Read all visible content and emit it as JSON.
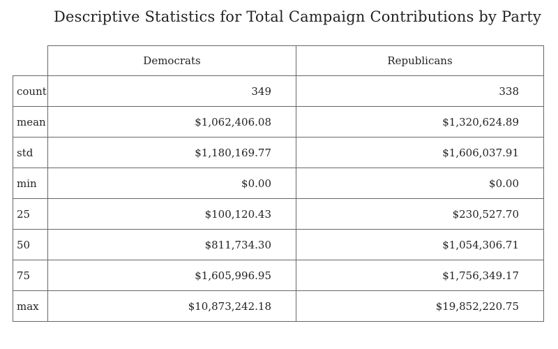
{
  "title": "Descriptive Statistics for Total Campaign Contributions by Party",
  "table": {
    "columns": [
      "Democrats",
      "Republicans"
    ],
    "rows": [
      {
        "label": "count",
        "values": [
          "349",
          "338"
        ]
      },
      {
        "label": "mean",
        "values": [
          "$1,062,406.08",
          "$1,320,624.89"
        ]
      },
      {
        "label": "std",
        "values": [
          "$1,180,169.77",
          "$1,606,037.91"
        ]
      },
      {
        "label": "min",
        "values": [
          "$0.00",
          "$0.00"
        ]
      },
      {
        "label": "25",
        "values": [
          "$100,120.43",
          "$230,527.70"
        ]
      },
      {
        "label": "50",
        "values": [
          "$811,734.30",
          "$1,054,306.71"
        ]
      },
      {
        "label": "75",
        "values": [
          "$1,605,996.95",
          "$1,756,349.17"
        ]
      },
      {
        "label": "max",
        "values": [
          "$10,873,242.18",
          "$19,852,220.75"
        ]
      }
    ]
  }
}
